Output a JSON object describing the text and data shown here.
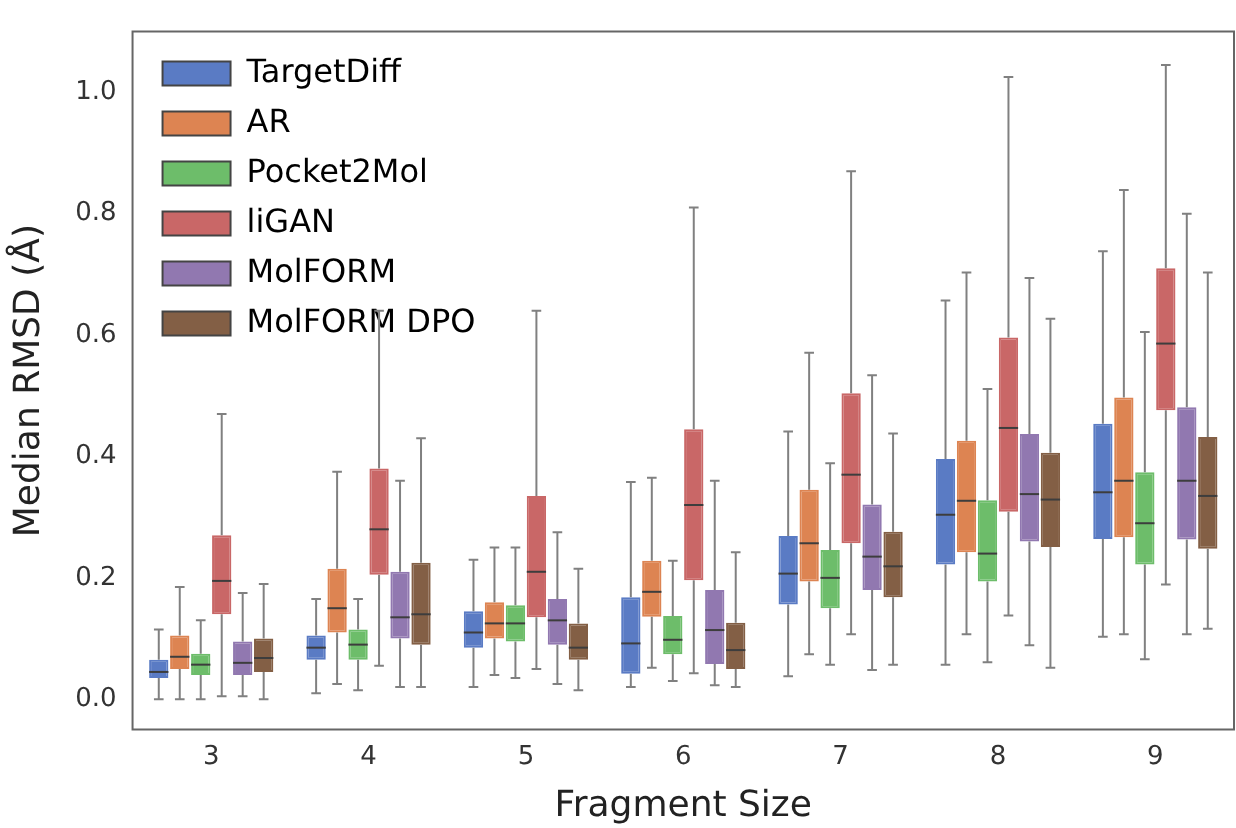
{
  "chart_data": {
    "type": "box",
    "xlabel": "Fragment Size",
    "ylabel": "Median RMSD (Å)",
    "categories": [
      "3",
      "4",
      "5",
      "6",
      "7",
      "8",
      "9"
    ],
    "ylim": [
      -0.05,
      1.1
    ],
    "yticks": [
      {
        "value": 0,
        "label": "0.0"
      },
      0.2,
      0.4,
      0.6,
      0.8,
      {
        "value": 1,
        "label": "1.0"
      }
    ],
    "legend": "top left",
    "series": [
      {
        "name": "TargetDiff",
        "color": "#5a7bc4",
        "boxes": [
          {
            "low": 0.0,
            "q1": 0.035,
            "median": 0.045,
            "q3": 0.065,
            "high": 0.115
          },
          {
            "low": 0.01,
            "q1": 0.065,
            "median": 0.085,
            "q3": 0.105,
            "high": 0.165
          },
          {
            "low": 0.02,
            "q1": 0.085,
            "median": 0.11,
            "q3": 0.145,
            "high": 0.23
          },
          {
            "low": 0.02,
            "q1": 0.042,
            "median": 0.092,
            "q3": 0.168,
            "high": 0.358
          },
          {
            "low": 0.038,
            "q1": 0.156,
            "median": 0.207,
            "q3": 0.269,
            "high": 0.441
          },
          {
            "low": 0.057,
            "q1": 0.222,
            "median": 0.304,
            "q3": 0.396,
            "high": 0.657
          },
          {
            "low": 0.103,
            "q1": 0.264,
            "median": 0.341,
            "q3": 0.454,
            "high": 0.738
          }
        ]
      },
      {
        "name": "AR",
        "color": "#dd8452",
        "boxes": [
          {
            "low": 0.0,
            "q1": 0.05,
            "median": 0.07,
            "q3": 0.105,
            "high": 0.185
          },
          {
            "low": 0.025,
            "q1": 0.11,
            "median": 0.15,
            "q3": 0.215,
            "high": 0.375
          },
          {
            "low": 0.04,
            "q1": 0.1,
            "median": 0.125,
            "q3": 0.16,
            "high": 0.25
          },
          {
            "low": 0.052,
            "q1": 0.136,
            "median": 0.177,
            "q3": 0.228,
            "high": 0.365
          },
          {
            "low": 0.074,
            "q1": 0.194,
            "median": 0.257,
            "q3": 0.345,
            "high": 0.571
          },
          {
            "low": 0.107,
            "q1": 0.242,
            "median": 0.327,
            "q3": 0.426,
            "high": 0.703
          },
          {
            "low": 0.107,
            "q1": 0.267,
            "median": 0.36,
            "q3": 0.497,
            "high": 0.839
          }
        ]
      },
      {
        "name": "Pocket2Mol",
        "color": "#6dbd6a",
        "boxes": [
          {
            "low": 0.0,
            "q1": 0.04,
            "median": 0.057,
            "q3": 0.075,
            "high": 0.13
          },
          {
            "low": 0.015,
            "q1": 0.065,
            "median": 0.09,
            "q3": 0.115,
            "high": 0.165
          },
          {
            "low": 0.035,
            "q1": 0.095,
            "median": 0.125,
            "q3": 0.155,
            "high": 0.25
          },
          {
            "low": 0.03,
            "q1": 0.074,
            "median": 0.098,
            "q3": 0.137,
            "high": 0.228
          },
          {
            "low": 0.057,
            "q1": 0.15,
            "median": 0.2,
            "q3": 0.246,
            "high": 0.389
          },
          {
            "low": 0.061,
            "q1": 0.194,
            "median": 0.24,
            "q3": 0.328,
            "high": 0.511
          },
          {
            "low": 0.066,
            "q1": 0.222,
            "median": 0.29,
            "q3": 0.374,
            "high": 0.605
          }
        ]
      },
      {
        "name": "liGAN",
        "color": "#c96767",
        "boxes": [
          {
            "low": 0.005,
            "q1": 0.14,
            "median": 0.195,
            "q3": 0.27,
            "high": 0.47
          },
          {
            "low": 0.055,
            "q1": 0.205,
            "median": 0.28,
            "q3": 0.38,
            "high": 0.64
          },
          {
            "low": 0.05,
            "q1": 0.135,
            "median": 0.21,
            "q3": 0.335,
            "high": 0.64
          },
          {
            "low": 0.043,
            "q1": 0.196,
            "median": 0.32,
            "q3": 0.445,
            "high": 0.81
          },
          {
            "low": 0.107,
            "q1": 0.257,
            "median": 0.37,
            "q3": 0.504,
            "high": 0.87
          },
          {
            "low": 0.138,
            "q1": 0.309,
            "median": 0.447,
            "q3": 0.596,
            "high": 1.025
          },
          {
            "low": 0.189,
            "q1": 0.476,
            "median": 0.586,
            "q3": 0.71,
            "high": 1.045
          }
        ]
      },
      {
        "name": "MolFORM",
        "color": "#9178b0",
        "boxes": [
          {
            "low": 0.005,
            "q1": 0.04,
            "median": 0.06,
            "q3": 0.095,
            "high": 0.175
          },
          {
            "low": 0.02,
            "q1": 0.1,
            "median": 0.135,
            "q3": 0.21,
            "high": 0.36
          },
          {
            "low": 0.025,
            "q1": 0.09,
            "median": 0.13,
            "q3": 0.165,
            "high": 0.275
          },
          {
            "low": 0.023,
            "q1": 0.058,
            "median": 0.114,
            "q3": 0.18,
            "high": 0.36
          },
          {
            "low": 0.048,
            "q1": 0.18,
            "median": 0.235,
            "q3": 0.321,
            "high": 0.534
          },
          {
            "low": 0.089,
            "q1": 0.26,
            "median": 0.338,
            "q3": 0.437,
            "high": 0.694
          },
          {
            "low": 0.107,
            "q1": 0.263,
            "median": 0.36,
            "q3": 0.481,
            "high": 0.8
          }
        ]
      },
      {
        "name": "MolFORM DPO",
        "color": "#835f45",
        "boxes": [
          {
            "low": 0.0,
            "q1": 0.045,
            "median": 0.068,
            "q3": 0.1,
            "high": 0.19
          },
          {
            "low": 0.02,
            "q1": 0.09,
            "median": 0.14,
            "q3": 0.225,
            "high": 0.43
          },
          {
            "low": 0.015,
            "q1": 0.065,
            "median": 0.085,
            "q3": 0.125,
            "high": 0.215
          },
          {
            "low": 0.02,
            "q1": 0.05,
            "median": 0.081,
            "q3": 0.126,
            "high": 0.242
          },
          {
            "low": 0.057,
            "q1": 0.168,
            "median": 0.219,
            "q3": 0.276,
            "high": 0.438
          },
          {
            "low": 0.052,
            "q1": 0.251,
            "median": 0.329,
            "q3": 0.406,
            "high": 0.627
          },
          {
            "low": 0.116,
            "q1": 0.248,
            "median": 0.335,
            "q3": 0.432,
            "high": 0.703
          }
        ]
      }
    ]
  }
}
